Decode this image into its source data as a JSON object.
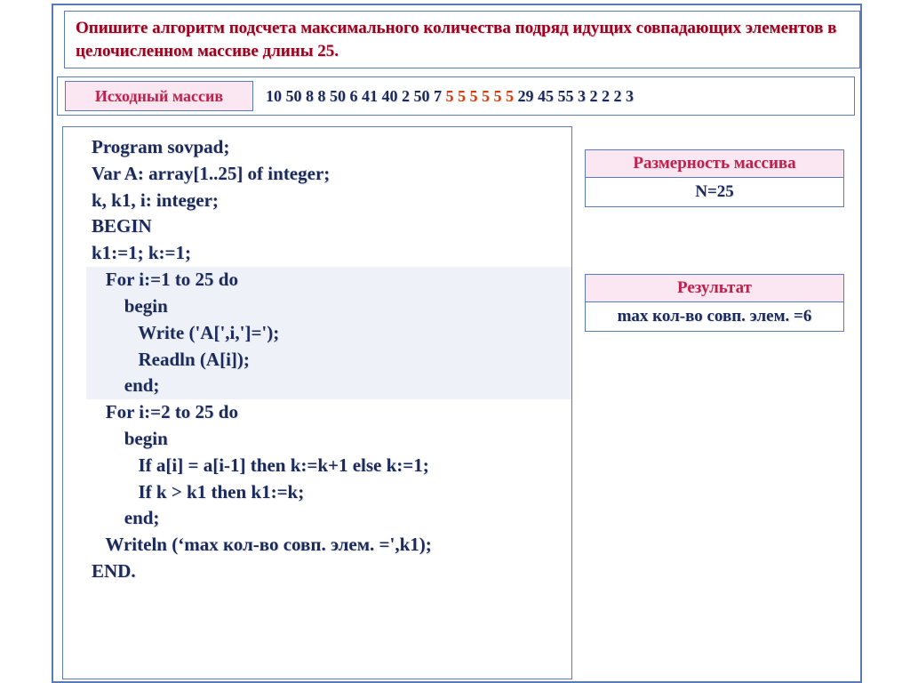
{
  "task": "Опишите алгоритм подсчета максимального количества подряд идущих совпадающих элементов в целочисленном массиве длины 25.",
  "array": {
    "label": "Исходный массив",
    "values_before": "10  50  8  8  50  6  41  40  2  50 7  ",
    "values_highlight": "5  5  5  5  5  5",
    "values_after": "  29  45  55  3   2   2   2  3"
  },
  "dim": {
    "header": "Размерность массива",
    "value": "N=25"
  },
  "result": {
    "header": "Результат",
    "value": "max кол-во совп. элем. =6"
  },
  "code": {
    "l1": "Program sovpad;",
    "l2": "Var A: array[1..25] of integer;",
    "l3": "k, k1, i: integer;",
    "l4": "BEGIN",
    "l5": "   k1:=1;   k:=1;",
    "l6": "   For i:=1 to 25 do",
    "l7": "       begin",
    "l8": "          Write ('A[',i,']=');",
    "l9": "          Readln (A[i]);",
    "l10": "       end;",
    "l11": "   For i:=2 to 25 do",
    "l12": "       begin",
    "l13": "          If a[i] = a[i-1] then k:=k+1 else k:=1;",
    "l14": "          If k > k1 then k1:=k;",
    "l15": "       end;",
    "l16": "   Writeln (‘max кол-во совп. элем. =',k1);",
    "l17": "END."
  },
  "colors": {
    "frame_border": "#5a7ab8",
    "pink_bg": "#fbe7f1",
    "red_text": "#a00020",
    "pink_text": "#c02050",
    "blue_text": "#1a2a5a",
    "orange_text": "#d04010",
    "highlight_bg": "#eef2f8"
  }
}
